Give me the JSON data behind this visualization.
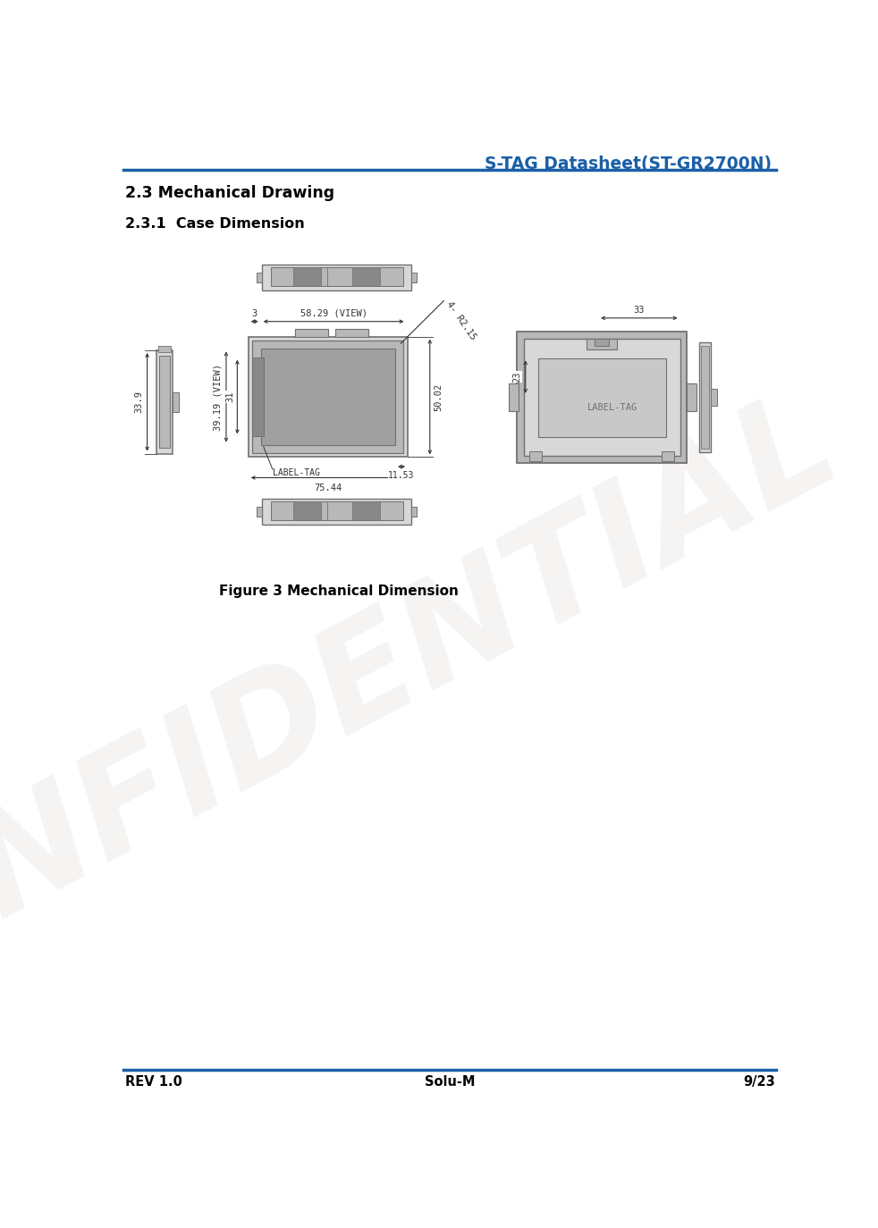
{
  "title_header": "S-TAG Datasheet(ST-GR2700N)",
  "header_color": "#1a5fa8",
  "header_line_color": "#1a5fa8",
  "section_title": "2.3 Mechanical Drawing",
  "subsection_title": "2.3.1  Case Dimension",
  "figure_caption": "Figure 3 Mechanical Dimension",
  "footer_left": "REV 1.0",
  "footer_center": "Solu-M",
  "footer_right": "9/23",
  "footer_line_color": "#1a5fa8",
  "bg_color": "#ffffff",
  "dim_color": "#333333",
  "gray_light": "#d8d8d8",
  "gray_mid": "#b8b8b8",
  "gray_dark": "#707070",
  "gray_screen": "#a0a0a0",
  "gray_deep": "#888888",
  "watermark_color": "#d8cfc8",
  "watermark_text": "CONFIDENTIAL",
  "watermark_alpha": 0.22
}
